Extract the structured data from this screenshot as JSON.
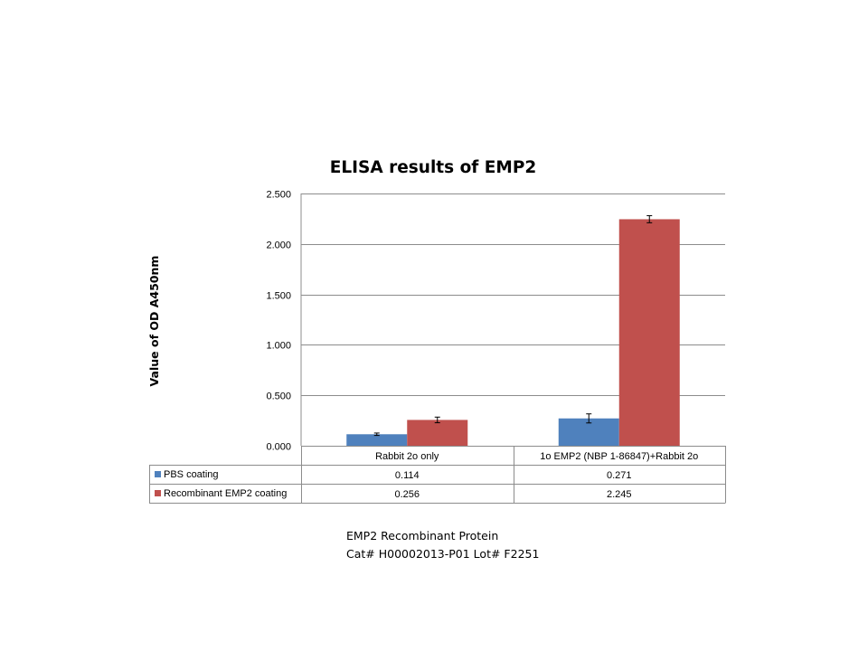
{
  "chart_data": {
    "type": "bar",
    "title": "ELISA results of EMP2",
    "ylabel": "Value of OD A450nm",
    "xlabel": "",
    "ylim": [
      0,
      2.5
    ],
    "yticks": [
      "0.000",
      "0.500",
      "1.000",
      "1.500",
      "2.000",
      "2.500"
    ],
    "ytick_values": [
      0,
      0.5,
      1.0,
      1.5,
      2.0,
      2.5
    ],
    "grid": true,
    "categories": [
      "Rabbit 2o only",
      "1o EMP2 (NBP 1-86847)+Rabbit 2o"
    ],
    "series": [
      {
        "name": "PBS coating",
        "color": "#4f81bd",
        "values": [
          0.114,
          0.271
        ],
        "labels": [
          "0.114",
          "0.271"
        ],
        "errors": [
          0.012,
          0.045
        ]
      },
      {
        "name": "Recombinant EMP2 coating",
        "color": "#c0504d",
        "values": [
          0.256,
          2.245
        ],
        "labels": [
          "0.256",
          "2.245"
        ],
        "errors": [
          0.028,
          0.035
        ]
      }
    ],
    "legend": "data-table-left"
  },
  "caption": {
    "line1": "EMP2  Recombinant Protein",
    "line2": "Cat# H00002013-P01  Lot# F2251"
  }
}
